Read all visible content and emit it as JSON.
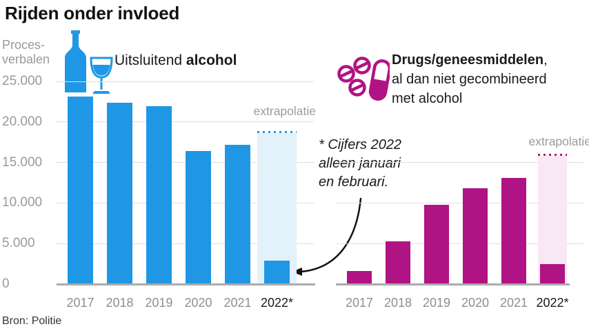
{
  "header": {
    "title": "Rijden onder invloed"
  },
  "y_axis": {
    "line1": "Proces-",
    "line2": "verbalen"
  },
  "source": "Bron: Politie",
  "annotation": {
    "line1": "* Cijfers 2022",
    "line2": "alleen januari",
    "line3": "en februari.",
    "arrow_points_to": "2022* bar of alcohol chart"
  },
  "colors": {
    "alcohol": "#1F97E4",
    "drugs": "#B01383",
    "alcohol_extrapolation_fill": "#E3F1FA",
    "drugs_extrapolation_fill": "#F8E8F3",
    "grid": "#E0E0E0",
    "axis": "#ABABAB",
    "muted_text": "#999999",
    "text": "#1A1A1A"
  },
  "chart_data": [
    {
      "type": "bar",
      "series_name": "Uitsluitend alcohol",
      "legend": {
        "regular": "Uitsluitend ",
        "bold": "alcohol"
      },
      "icon": "wine-bottle-and-glass-icon",
      "color": "#1F97E4",
      "categories": [
        "2017",
        "2018",
        "2019",
        "2020",
        "2021",
        "2022*"
      ],
      "values": [
        23100,
        22400,
        21900,
        16400,
        17200,
        2900
      ],
      "extrapolation": {
        "label": "extrapolatie",
        "value": 18600,
        "applies_to": "2022*"
      },
      "ylabel": "Proces-verbalen",
      "ylim": [
        0,
        25000
      ],
      "grid_values": [
        25000,
        20000,
        15000,
        10000,
        5000
      ],
      "y_ticks": [
        {
          "label": "25.000",
          "value": 25000
        },
        {
          "label": "20.000",
          "value": 20000
        },
        {
          "label": "15.000",
          "value": 15000
        },
        {
          "label": "10.000",
          "value": 10000
        },
        {
          "label": "5.000",
          "value": 5000
        },
        {
          "label": "0",
          "value": 0
        }
      ],
      "show_y_tick_labels": true,
      "legend_position": "top"
    },
    {
      "type": "bar",
      "series_name": "Drugs/geneesmiddelen, al dan niet gecombineerd met alcohol",
      "legend": {
        "bold": "Drugs/geneesmiddelen",
        "after_bold": ",",
        "line2": "al dan niet gecombineerd",
        "line3": "met alcohol"
      },
      "icon": "pills-and-capsule-icon",
      "color": "#B01383",
      "categories": [
        "2017",
        "2018",
        "2019",
        "2020",
        "2021",
        "2022*"
      ],
      "values": [
        1600,
        5300,
        9800,
        11800,
        13100,
        2500
      ],
      "extrapolation": {
        "label": "extrapolatie",
        "value": 15800,
        "applies_to": "2022*"
      },
      "ylim": [
        0,
        25000
      ],
      "grid_values": [
        15000,
        10000,
        5000
      ],
      "show_y_tick_labels": false,
      "legend_position": "top"
    }
  ]
}
